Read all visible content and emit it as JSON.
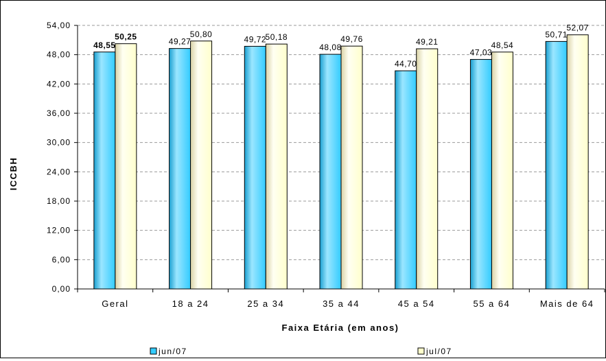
{
  "colors": {
    "jun07": "#33CCFF",
    "jul07": "#FFFFCC",
    "jun07_light": "#9BE6FF",
    "jun07_dark": "#1A9FD0",
    "jul07_dark": "#D9D2A6",
    "grid": "#9a9a9a"
  },
  "chart_data": {
    "type": "bar",
    "title": "",
    "xlabel": "Faixa Etária (em anos)",
    "ylabel": "ICCBH",
    "ylim": [
      0,
      54
    ],
    "ytick_step": 6,
    "ytick_labels": [
      "0,00",
      "6,00",
      "12,00",
      "18,00",
      "24,00",
      "30,00",
      "36,00",
      "42,00",
      "48,00",
      "54,00"
    ],
    "grid": true,
    "legend_position": "bottom",
    "categories": [
      "Geral",
      "18 a 24",
      "25 a 34",
      "35 a 44",
      "45 a 54",
      "55 a 64",
      "Mais de 64"
    ],
    "series": [
      {
        "name": "jun/07",
        "values": [
          48.55,
          49.27,
          49.72,
          48.08,
          44.7,
          47.03,
          50.71
        ],
        "labels": [
          "48,55",
          "49,27",
          "49,72",
          "48,08",
          "44,70",
          "47,03",
          "50,71"
        ],
        "label_bold": [
          true,
          false,
          false,
          false,
          false,
          false,
          false
        ]
      },
      {
        "name": "jul/07",
        "values": [
          50.25,
          50.8,
          50.18,
          49.76,
          49.21,
          48.54,
          52.07
        ],
        "labels": [
          "50,25",
          "50,80",
          "50,18",
          "49,76",
          "49,21",
          "48,54",
          "52,07"
        ],
        "label_bold": [
          true,
          false,
          false,
          false,
          false,
          false,
          false
        ]
      }
    ]
  }
}
